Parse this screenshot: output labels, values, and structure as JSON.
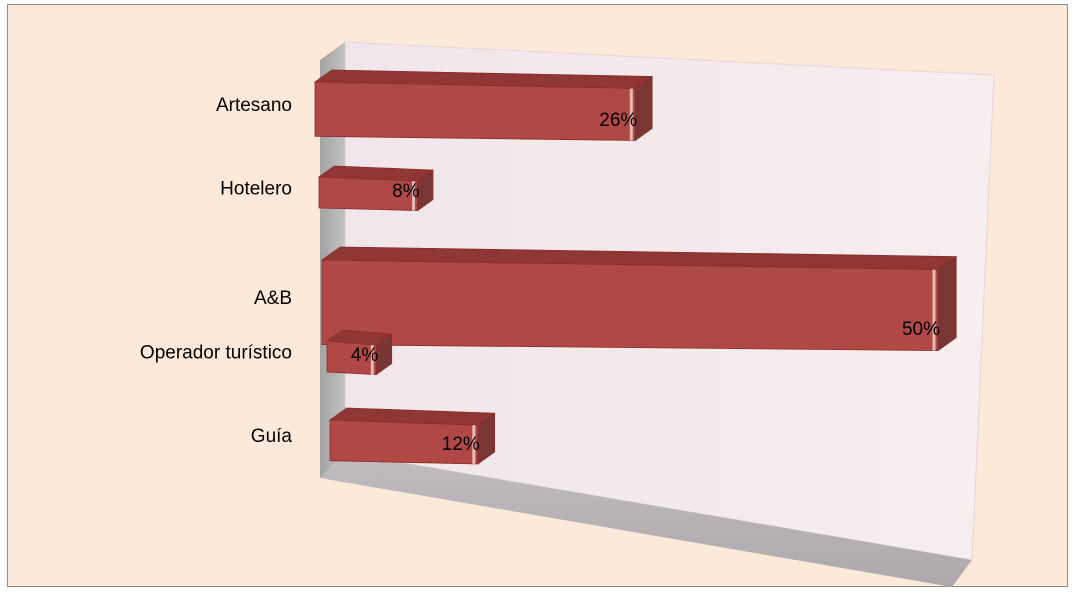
{
  "chart_data": {
    "type": "bar",
    "orientation": "horizontal",
    "style": "3d",
    "categories": [
      "Artesano",
      "Hotelero",
      "A&B",
      "Operador turístico",
      "Guía"
    ],
    "values": [
      26,
      8,
      50,
      4,
      12
    ],
    "value_labels": [
      "26%",
      "8%",
      "50%",
      "4%",
      "12%"
    ],
    "unit": "%",
    "title": "",
    "xlabel": "",
    "ylabel": "",
    "xlim": [
      0,
      50
    ],
    "grid": false,
    "legend": "none",
    "colors": {
      "bar_front": "#b04845",
      "bar_top": "#8e3734",
      "bar_side": "#7a3634",
      "bar_edge": "#8a2c2a",
      "chart_background": "#fde9d9",
      "back_wall": "#f3e8ea",
      "side_wall": "#a8a8a8",
      "floor": "#b5b0b3"
    }
  }
}
